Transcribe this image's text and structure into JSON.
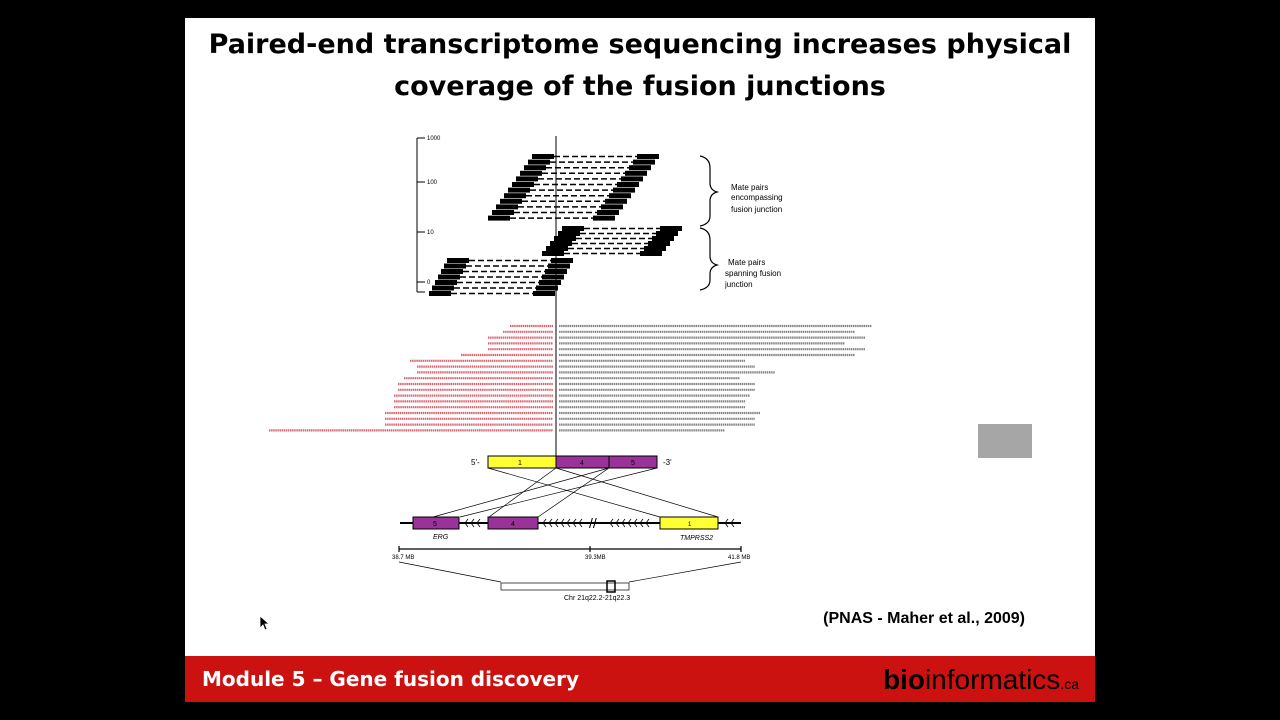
{
  "slide": {
    "title_line1": "Paired-end transcriptome sequencing increases physical",
    "title_line2": "coverage of the fusion junctions",
    "citation": "(PNAS - Maher et al., 2009)"
  },
  "figure": {
    "y_ticks": [
      "1000",
      "100",
      "10",
      "0"
    ],
    "label_encompassing": [
      "Mate pairs",
      "encompassing",
      "fusion junction"
    ],
    "label_spanning": [
      "Mate pairs",
      "spanning fusion",
      "junction"
    ],
    "transcript_5": "5'-",
    "transcript_3": "-3'",
    "exon_1": "1",
    "exon_4": "4",
    "exon_5": "5",
    "gene_erg": "ERG",
    "gene_tmprss2": "TMPRSS2",
    "erg_exon_5": "5",
    "erg_exon_4": "4",
    "tmprss2_exon_1": "1",
    "scale_left": "38.7 MB",
    "scale_mid": "39.3MB",
    "scale_right": "41.8 MB",
    "chromosome": "Chr 21q22.2-21q22.3"
  },
  "footer": {
    "module": "Module 5 – Gene fusion discovery",
    "logo_part1": "bio",
    "logo_part2": "informatics",
    "logo_part3": ".ca"
  },
  "colors": {
    "footer_bg": "#cc1111",
    "exon_tmprss2": "#ffff33",
    "exon_erg": "#993399",
    "read_red": "#cc3344"
  }
}
